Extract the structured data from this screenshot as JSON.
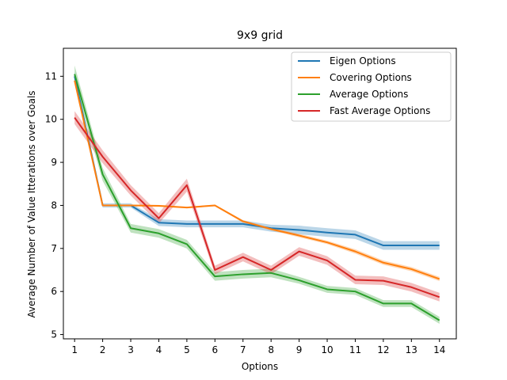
{
  "chart_data": {
    "type": "line",
    "title": "9x9 grid",
    "xlabel": "Options",
    "ylabel": "Average Number of Value Itterations over Goals",
    "x": [
      1,
      2,
      3,
      4,
      5,
      6,
      7,
      8,
      9,
      10,
      11,
      12,
      13,
      14
    ],
    "xlim": [
      0.6,
      14.6
    ],
    "ylim": [
      4.9,
      11.65
    ],
    "xticks": [
      "1",
      "2",
      "3",
      "4",
      "5",
      "6",
      "7",
      "8",
      "9",
      "10",
      "11",
      "12",
      "13",
      "14"
    ],
    "yticks": [
      "5",
      "6",
      "7",
      "8",
      "9",
      "10",
      "11"
    ],
    "grid": false,
    "legend_position": "top-right",
    "series": [
      {
        "name": "Eigen Options",
        "color": "#1f77b4",
        "values": [
          11.0,
          8.0,
          8.0,
          7.6,
          7.57,
          7.57,
          7.57,
          7.47,
          7.43,
          7.37,
          7.32,
          7.07,
          7.07,
          7.07
        ],
        "band": [
          0.1,
          0.05,
          0.05,
          0.08,
          0.08,
          0.08,
          0.08,
          0.08,
          0.1,
          0.1,
          0.1,
          0.1,
          0.1,
          0.1
        ]
      },
      {
        "name": "Covering Options",
        "color": "#ff7f0e",
        "values": [
          10.9,
          8.0,
          8.0,
          7.99,
          7.95,
          8.0,
          7.63,
          7.45,
          7.3,
          7.14,
          6.93,
          6.67,
          6.52,
          6.29
        ],
        "band": [
          0.05,
          0.02,
          0.02,
          0.02,
          0.02,
          0.02,
          0.03,
          0.03,
          0.04,
          0.04,
          0.05,
          0.05,
          0.05,
          0.05
        ]
      },
      {
        "name": "Average Options",
        "color": "#2ca02c",
        "values": [
          11.05,
          8.72,
          7.47,
          7.35,
          7.1,
          6.35,
          6.4,
          6.43,
          6.26,
          6.05,
          6.0,
          5.72,
          5.72,
          5.33
        ],
        "band": [
          0.2,
          0.15,
          0.1,
          0.1,
          0.1,
          0.1,
          0.1,
          0.1,
          0.08,
          0.08,
          0.08,
          0.08,
          0.08,
          0.08
        ]
      },
      {
        "name": "Fast Average Options",
        "color": "#d62728",
        "values": [
          10.04,
          9.13,
          8.35,
          7.7,
          8.47,
          6.5,
          6.8,
          6.5,
          6.93,
          6.72,
          6.27,
          6.25,
          6.1,
          5.87
        ],
        "band": [
          0.15,
          0.15,
          0.12,
          0.12,
          0.15,
          0.1,
          0.1,
          0.1,
          0.1,
          0.1,
          0.1,
          0.1,
          0.1,
          0.1
        ]
      }
    ]
  }
}
